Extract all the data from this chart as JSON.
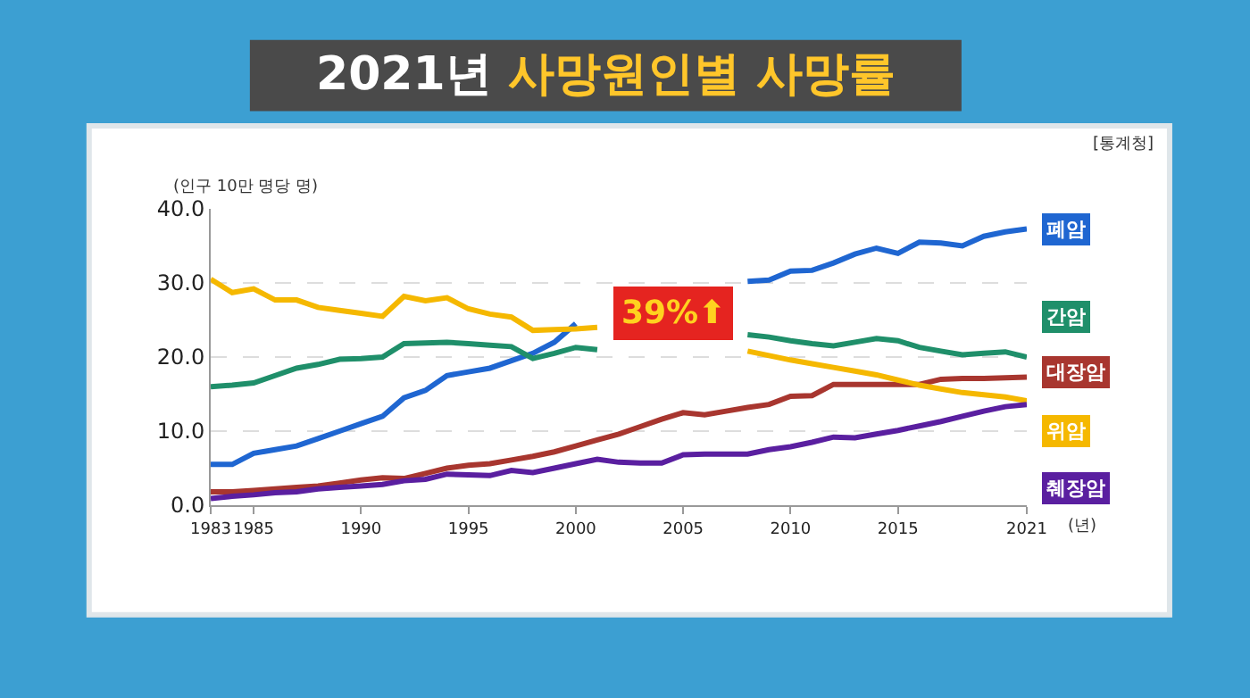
{
  "chart_data": {
    "type": "line",
    "title": "2021년 사망원인별 사망률",
    "ylabel": "(인구 10만 명당 명)",
    "xlabel": "(년)",
    "annotations": [
      "[통계청]",
      "39%⬆"
    ],
    "x": [
      1983,
      1984,
      1985,
      1986,
      1987,
      1988,
      1989,
      1990,
      1991,
      1992,
      1993,
      1994,
      1995,
      1996,
      1997,
      1998,
      1999,
      2000,
      2001,
      2002,
      2003,
      2004,
      2005,
      2006,
      2007,
      2008,
      2009,
      2010,
      2011,
      2012,
      2013,
      2014,
      2015,
      2016,
      2017,
      2018,
      2019,
      2020,
      2021
    ],
    "series": [
      {
        "name": "폐암",
        "color": "#1f66d1",
        "values": [
          5.5,
          5.5,
          7.0,
          7.5,
          8.0,
          9.0,
          10.0,
          11.0,
          12.0,
          14.5,
          15.5,
          17.5,
          18.0,
          18.5,
          19.5,
          20.5,
          22.0,
          24.5,
          null,
          null,
          null,
          null,
          null,
          null,
          null,
          30.2,
          30.4,
          31.6,
          31.7,
          32.7,
          33.9,
          34.7,
          34.0,
          35.5,
          35.4,
          35.0,
          36.3,
          36.9,
          37.3
        ]
      },
      {
        "name": "간암",
        "color": "#1f8f6a",
        "values": [
          16.0,
          16.2,
          16.5,
          17.5,
          18.5,
          19.0,
          19.7,
          19.8,
          20.0,
          21.8,
          21.9,
          22.0,
          21.8,
          21.6,
          21.4,
          19.8,
          20.5,
          21.3,
          21.0,
          null,
          null,
          null,
          null,
          null,
          null,
          23.0,
          22.7,
          22.2,
          21.8,
          21.5,
          22.0,
          22.5,
          22.2,
          21.3,
          20.8,
          20.3,
          20.5,
          20.7,
          20.0
        ]
      },
      {
        "name": "대장암",
        "color": "#a8362f",
        "values": [
          1.8,
          1.8,
          2.0,
          2.2,
          2.4,
          2.6,
          3.0,
          3.4,
          3.7,
          3.6,
          4.3,
          5.0,
          5.4,
          5.6,
          6.1,
          6.6,
          7.2,
          8.0,
          8.8,
          9.6,
          10.6,
          11.6,
          12.5,
          12.2,
          12.7,
          13.2,
          13.6,
          14.7,
          14.8,
          16.3,
          16.3,
          16.3,
          16.3,
          16.3,
          17.0,
          17.1,
          17.1,
          17.2,
          17.3
        ]
      },
      {
        "name": "위암",
        "color": "#f5b800",
        "values": [
          30.5,
          28.7,
          29.2,
          27.7,
          27.7,
          26.7,
          26.3,
          25.9,
          25.5,
          28.2,
          27.6,
          28.0,
          26.5,
          25.8,
          25.4,
          23.6,
          23.7,
          23.8,
          24.0,
          null,
          null,
          null,
          null,
          null,
          null,
          20.8,
          20.2,
          19.6,
          19.1,
          18.6,
          18.1,
          17.6,
          16.9,
          16.2,
          15.7,
          15.2,
          14.9,
          14.6,
          14.1
        ]
      },
      {
        "name": "췌장암",
        "color": "#5a1fa0",
        "values": [
          0.9,
          1.2,
          1.4,
          1.7,
          1.8,
          2.2,
          2.4,
          2.6,
          2.8,
          3.3,
          3.5,
          4.2,
          4.1,
          4.0,
          4.7,
          4.4,
          5.0,
          5.6,
          6.2,
          5.8,
          5.7,
          5.7,
          6.8,
          6.9,
          6.9,
          6.9,
          7.5,
          7.9,
          8.5,
          9.2,
          9.1,
          9.6,
          10.1,
          10.7,
          11.3,
          12.0,
          12.7,
          13.3,
          13.6
        ]
      }
    ],
    "xlim": [
      1983,
      2021
    ],
    "xticks": [
      1983,
      1985,
      1990,
      1995,
      2000,
      2005,
      2010,
      2015,
      2021
    ],
    "ylim": [
      0,
      40
    ],
    "yticks": [
      {
        "value": 0,
        "label": "0.0"
      },
      {
        "value": 10,
        "label": "10.0"
      },
      {
        "value": 20,
        "label": "20.0"
      },
      {
        "value": 30,
        "label": "30.0"
      },
      {
        "value": 40,
        "label": "40.0"
      }
    ],
    "grid": "y",
    "marker": "none",
    "line_style": "solid",
    "legend": "right"
  }
}
